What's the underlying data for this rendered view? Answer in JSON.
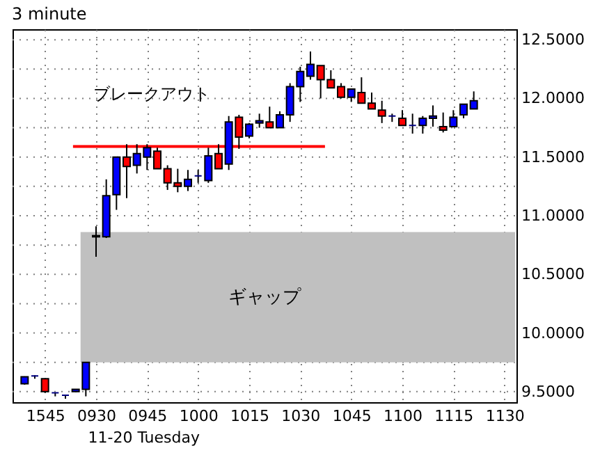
{
  "chart_data": {
    "type": "candlestick",
    "title": "3 minute",
    "categories": [
      null,
      null,
      "1545",
      null,
      null,
      null,
      null,
      "0930",
      null,
      null,
      null,
      null,
      "0945",
      null,
      null,
      null,
      null,
      "1000",
      null,
      null,
      null,
      null,
      "1015",
      null,
      null,
      null,
      null,
      "1030",
      null,
      null,
      null,
      null,
      "1045",
      null,
      null,
      null,
      null,
      "1100",
      null,
      null,
      null,
      null,
      "1115",
      null,
      null,
      null,
      null,
      "1130"
    ],
    "ohlc": [
      [
        9.567,
        9.63,
        9.56,
        9.626
      ],
      [
        9.634,
        9.64,
        9.61,
        9.634
      ],
      [
        9.61,
        9.61,
        9.49,
        9.5
      ],
      [
        9.49,
        9.49,
        9.46,
        9.49
      ],
      [
        9.47,
        9.47,
        9.44,
        9.47
      ],
      [
        9.5,
        9.52,
        9.5,
        9.52
      ],
      [
        9.52,
        9.75,
        9.46,
        9.75
      ],
      [
        10.82,
        10.91,
        10.65,
        10.83
      ],
      [
        10.82,
        11.31,
        10.81,
        11.17
      ],
      [
        11.18,
        11.5,
        11.05,
        11.5
      ],
      [
        11.5,
        11.61,
        11.15,
        11.42
      ],
      [
        11.43,
        11.61,
        11.36,
        11.53
      ],
      [
        11.5,
        11.61,
        11.39,
        11.58
      ],
      [
        11.55,
        11.58,
        11.4,
        11.4
      ],
      [
        11.4,
        11.43,
        11.22,
        11.28
      ],
      [
        11.28,
        11.4,
        11.2,
        11.25
      ],
      [
        11.25,
        11.39,
        11.21,
        11.31
      ],
      [
        11.34,
        11.39,
        11.28,
        11.34
      ],
      [
        11.3,
        11.58,
        11.28,
        11.51
      ],
      [
        11.53,
        11.61,
        11.4,
        11.4
      ],
      [
        11.44,
        11.85,
        11.39,
        11.8
      ],
      [
        11.84,
        11.86,
        11.57,
        11.67
      ],
      [
        11.68,
        11.79,
        11.66,
        11.78
      ],
      [
        11.79,
        11.87,
        11.75,
        11.81
      ],
      [
        11.8,
        11.93,
        11.75,
        11.75
      ],
      [
        11.75,
        11.89,
        11.75,
        11.86
      ],
      [
        11.86,
        12.13,
        11.8,
        12.1
      ],
      [
        12.1,
        12.27,
        11.97,
        12.23
      ],
      [
        12.19,
        12.4,
        12.16,
        12.29
      ],
      [
        12.28,
        12.28,
        12.0,
        12.16
      ],
      [
        12.16,
        12.24,
        12.09,
        12.09
      ],
      [
        12.1,
        12.13,
        12.0,
        12.01
      ],
      [
        12.01,
        12.08,
        11.97,
        12.08
      ],
      [
        12.05,
        12.18,
        11.96,
        11.96
      ],
      [
        11.96,
        12.05,
        11.91,
        11.91
      ],
      [
        11.9,
        11.98,
        11.79,
        11.85
      ],
      [
        11.85,
        11.87,
        11.8,
        11.85
      ],
      [
        11.83,
        11.9,
        11.77,
        11.77
      ],
      [
        11.77,
        11.87,
        11.7,
        11.77
      ],
      [
        11.77,
        11.85,
        11.7,
        11.83
      ],
      [
        11.83,
        11.94,
        11.76,
        11.85
      ],
      [
        11.76,
        11.88,
        11.71,
        11.73
      ],
      [
        11.76,
        11.9,
        11.76,
        11.84
      ],
      [
        11.86,
        11.95,
        11.83,
        11.95
      ],
      [
        11.91,
        12.06,
        11.91,
        11.98
      ],
      null,
      null,
      null
    ],
    "colors": [
      "#0000ff",
      "#000080",
      "#ff0000",
      "#000080",
      "#000080",
      "#0000ff",
      "#0000ff",
      "#000080",
      "#0000ff",
      "#0000ff",
      "#ff0000",
      "#0000ff",
      "#0000ff",
      "#ff0000",
      "#ff0000",
      "#ff0000",
      "#0000ff",
      "#000080",
      "#0000ff",
      "#ff0000",
      "#0000ff",
      "#ff0000",
      "#0000ff",
      "#0000ff",
      "#ff0000",
      "#0000ff",
      "#0000ff",
      "#0000ff",
      "#0000ff",
      "#ff0000",
      "#ff0000",
      "#ff0000",
      "#0000ff",
      "#ff0000",
      "#ff0000",
      "#ff0000",
      "#000080",
      "#ff0000",
      "#000080",
      "#0000ff",
      "#0000ff",
      "#ff0000",
      "#0000ff",
      "#0000ff",
      "#0000ff",
      null,
      null,
      null
    ],
    "ylim": [
      9.41,
      12.59
    ],
    "yticks": [
      {
        "value": 9.5,
        "label": "9.5000"
      },
      {
        "value": 9.75,
        "label": null
      },
      {
        "value": 10.0,
        "label": "10.0000"
      },
      {
        "value": 10.25,
        "label": null
      },
      {
        "value": 10.5,
        "label": "10.5000"
      },
      {
        "value": 10.75,
        "label": null
      },
      {
        "value": 11.0,
        "label": "11.0000"
      },
      {
        "value": 11.25,
        "label": null
      },
      {
        "value": 11.5,
        "label": "11.5000"
      },
      {
        "value": 11.75,
        "label": null
      },
      {
        "value": 12.0,
        "label": "12.0000"
      },
      {
        "value": 12.25,
        "label": null
      },
      {
        "value": 12.5,
        "label": "12.5000"
      }
    ],
    "grid": true,
    "ref_lines": [
      {
        "axis": "y",
        "value": 11.59,
        "label": "ブレークアウト",
        "color": "#ff0000"
      }
    ],
    "bands": [
      {
        "axis": "y",
        "from": 9.75,
        "to": 10.86,
        "label": "ギャップ",
        "color": "#c0c0c0"
      }
    ],
    "annotations": [
      "11-20 Tuesday"
    ]
  }
}
